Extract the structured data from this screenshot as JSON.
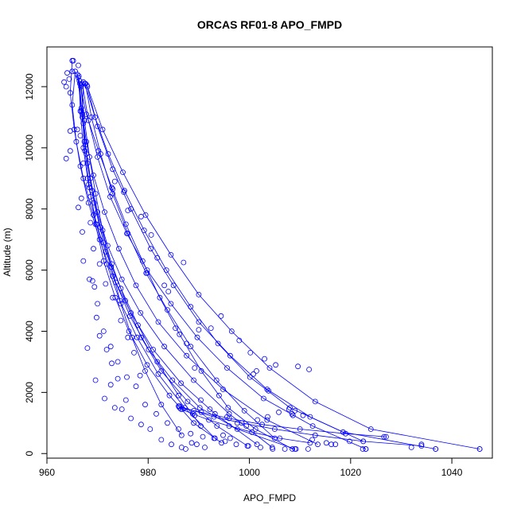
{
  "chart_data": {
    "type": "line",
    "title": "ORCAS RF01-8 APO_FMPD",
    "xlabel": "APO_FMPD",
    "ylabel": "Altitude (m)",
    "xlim": [
      960,
      1048
    ],
    "ylim": [
      -150,
      13300
    ],
    "x_ticks": [
      960,
      980,
      1000,
      1020,
      1040
    ],
    "y_ticks": [
      0,
      2000,
      4000,
      6000,
      8000,
      10000,
      12000
    ],
    "grid": false,
    "legend": "none",
    "line_color": "#0000ff",
    "marker": "open-circle",
    "series": [
      {
        "x": [
          966.5,
          967.8,
          970.2,
          972.8,
          975.6,
          978.9,
          982.3,
          986.2,
          990.5,
          995.8,
          1001.2,
          1008.5
        ],
        "y": [
          12100,
          11100,
          9900,
          8700,
          7500,
          6300,
          5100,
          3900,
          2700,
          1500,
          800,
          150
        ]
      },
      {
        "x": [
          966.8,
          967.2,
          968.0,
          969.3,
          971.2,
          973.6,
          976.4,
          980.1,
          984.8,
          990.2,
          997.6,
          1009.0
        ],
        "y": [
          12050,
          10800,
          9500,
          8200,
          6900,
          5600,
          4500,
          3400,
          2400,
          1500,
          800,
          150
        ]
      },
      {
        "x": [
          967.5,
          969.5,
          972.1,
          975.3,
          979.2,
          983.6,
          988.4,
          993.8,
          1000.1,
          1008.0,
          1018.5,
          1036.8
        ],
        "y": [
          12100,
          11000,
          9800,
          8600,
          7300,
          6000,
          4800,
          3600,
          2500,
          1500,
          700,
          150
        ]
      },
      {
        "x": [
          967.0,
          968.2,
          970.0,
          972.5,
          975.8,
          979.8,
          984.5,
          989.7,
          995.6,
          1002.8,
          1012.5,
          1023.0
        ],
        "y": [
          12100,
          10900,
          9700,
          8400,
          7200,
          6000,
          4900,
          3800,
          2800,
          1800,
          900,
          150
        ]
      },
      {
        "x": [
          966.2,
          966.8,
          967.6,
          968.6,
          970.0,
          972.0,
          974.8,
          978.5,
          983.2,
          989.0,
          996.0,
          1004.5
        ],
        "y": [
          12300,
          11200,
          10100,
          9000,
          7900,
          6800,
          5700,
          4600,
          3500,
          2400,
          1300,
          200
        ]
      },
      {
        "x": [
          965.0,
          964.6,
          965.4,
          966.6,
          968.2,
          970.4,
          973.0,
          976.6,
          981.0,
          986.5,
          993.2,
          1001.5
        ],
        "y": [
          12850,
          11800,
          10600,
          9400,
          8200,
          7000,
          5800,
          4600,
          3400,
          2300,
          1300,
          300
        ]
      },
      {
        "x": [
          967.9,
          970.0,
          973.0,
          976.6,
          980.5,
          985.0,
          990.0,
          996.2,
          1003.5,
          1012.0,
          1022.5
        ],
        "y": [
          12050,
          10700,
          9300,
          8000,
          6700,
          5500,
          4300,
          3200,
          2100,
          1200,
          400
        ]
      },
      {
        "x": [
          966.4,
          967.0,
          967.8,
          968.9,
          970.6,
          972.8,
          975.5,
          978.6,
          982.6,
          987.8,
          993.6,
          999.6
        ],
        "y": [
          12200,
          11000,
          9800,
          8600,
          7400,
          6200,
          5000,
          3800,
          2700,
          1700,
          900,
          250
        ]
      },
      {
        "x": [
          966.0,
          966.8,
          967.8,
          969.2,
          971.4,
          974.2,
          977.6,
          982.0,
          987.6,
          994.8,
          1003.5,
          1013.5
        ],
        "y": [
          12400,
          11300,
          10200,
          9100,
          7900,
          6700,
          5500,
          4300,
          3200,
          2100,
          1100,
          300
        ]
      },
      {
        "x": [
          967.2,
          967.0,
          967.5,
          968.4,
          969.6,
          971.2,
          973.5,
          976.2,
          979.8,
          984.2,
          989.0,
          994.5
        ],
        "y": [
          12150,
          11100,
          9900,
          8700,
          7500,
          6300,
          5100,
          4000,
          2900,
          1900,
          1000,
          350
        ]
      },
      {
        "x": [
          968.0,
          971.0,
          975.0,
          979.5,
          984.5,
          990.0,
          996.5,
          1004.0,
          1013.0,
          1024.0,
          1045.5
        ],
        "y": [
          12000,
          10600,
          9200,
          7800,
          6500,
          5200,
          4000,
          2800,
          1700,
          800,
          150
        ]
      },
      {
        "x": [
          966.3,
          966.6,
          967.2,
          968.2,
          969.8,
          971.8,
          974.4,
          977.8,
          982.0,
          987.2,
          993.2
        ],
        "y": [
          12350,
          11200,
          10000,
          8800,
          7500,
          6200,
          5000,
          3800,
          2600,
          1500,
          500
        ]
      },
      {
        "x": [
          986.0,
          989.0,
          993.0,
          998.5,
          1005.0,
          1013.0,
          1022.5,
          1034.0
        ],
        "y": [
          1550,
          1400,
          1200,
          1000,
          800,
          600,
          400,
          250
        ]
      },
      {
        "x": [
          986.2,
          990.5,
          996.0,
          1002.5,
          1010.0,
          1019.0,
          1027.0
        ],
        "y": [
          1500,
          1350,
          1150,
          950,
          800,
          650,
          550
        ]
      },
      {
        "x": [
          986.5,
          988.8,
          992.0,
          996.0,
          1000.5,
          1006.0,
          1012.0
        ],
        "y": [
          1450,
          1300,
          1100,
          900,
          700,
          500,
          350
        ]
      },
      {
        "x": [
          966.7,
          967.4,
          968.4,
          969.6,
          971.0,
          972.7,
          974.6,
          976.8,
          979.4,
          982.6,
          986.6
        ],
        "y": [
          12000,
          10900,
          9700,
          8500,
          7300,
          6100,
          4900,
          3800,
          2700,
          1600,
          600
        ]
      },
      {
        "x": [
          967.6,
          968.8,
          970.6,
          973.0,
          976.0,
          979.6,
          983.8,
          988.4,
          993.5,
          999.0,
          1005.0
        ],
        "y": [
          12100,
          11000,
          9800,
          8500,
          7200,
          5900,
          4700,
          3500,
          2400,
          1400,
          500
        ]
      },
      {
        "x": [
          965.6,
          965.0,
          965.8,
          967.2,
          969.2,
          971.6,
          974.6,
          978.0,
          981.8,
          986.0,
          990.4
        ],
        "y": [
          12500,
          11400,
          10200,
          9000,
          7800,
          6600,
          5400,
          4200,
          3000,
          1900,
          900
        ]
      }
    ],
    "scatter_points": {
      "x": [
        963.4,
        964.0,
        963.8,
        964.6,
        965.2,
        966.2,
        966.0,
        964.6,
        963.8,
        964.4,
        965.0,
        966.6,
        967.4,
        967.2,
        968.0,
        968.6,
        966.8,
        966.2,
        967.0,
        968.6,
        969.2,
        970.4,
        971.6,
        973.0,
        974.6,
        976.0,
        977.2,
        978.4,
        970.0,
        969.4,
        969.0,
        970.4,
        971.8,
        972.8,
        974.0,
        975.6,
        968.0,
        969.6,
        971.4,
        972.6,
        973.4,
        974.8,
        976.6,
        978.6,
        980.4,
        982.6,
        984.6,
        986.6,
        987.4,
        980.6,
        983.2,
        985.4,
        987.6,
        989.2,
        990.4,
        992.2,
        994.0,
        995.6,
        997.6,
        999.4,
        1001.6,
        1003.6,
        1005.8,
        1008.4,
        1010.6,
        1012.4,
        1015.2,
        1017.0,
        1019.8,
        1023.0,
        1026.6,
        1032.0,
        1034.0,
        1036.8,
        1045.5,
        967.2,
        968.4,
        969.8,
        971.2,
        972.6,
        974.0,
        975.8,
        977.6,
        979.4,
        981.6,
        983.8,
        986.0,
        988.4,
        990.8,
        993.0,
        995.2,
        997.4,
        999.8,
        1002.2,
        1004.6,
        1007.0,
        1009.2,
        1011.6,
        1000.8,
        1001.4,
        1003.8,
        1007.8,
        1008.6,
        1009.0,
        1016.2,
        1022.4,
        986.2,
        986.8,
        989.2,
        989.6,
        991.2,
        988.6,
        994.8,
        996.2,
        973.4,
        973.0,
        975.2,
        976.0,
        978.6,
        979.8,
        981.8,
        984.0,
        987.0,
        990.0,
        992.4,
        994.4,
        998.0,
        1000.2,
        1003.0,
        1005.2,
        1009.6,
        1011.8
      ],
      "y": [
        12150,
        12450,
        9650,
        10550,
        12850,
        12700,
        10600,
        9900,
        12000,
        12250,
        12500,
        10400,
        10200,
        9500,
        9000,
        8400,
        8350,
        8050,
        7250,
        7550,
        6700,
        6200,
        5550,
        5100,
        4350,
        3800,
        3300,
        2550,
        4900,
        5450,
        5650,
        3850,
        3400,
        2950,
        2450,
        1750,
        3450,
        2400,
        1800,
        2250,
        1500,
        1450,
        1150,
        950,
        800,
        450,
        300,
        200,
        150,
        7150,
        5500,
        4100,
        3600,
        2800,
        1750,
        1450,
        1900,
        1200,
        1000,
        900,
        1100,
        1200,
        1350,
        1300,
        1250,
        450,
        350,
        300,
        400,
        150,
        550,
        200,
        300,
        150,
        150,
        6300,
        5700,
        4450,
        4000,
        3500,
        3000,
        2500,
        2200,
        1600,
        1300,
        1000,
        800,
        650,
        550,
        500,
        400,
        300,
        250,
        200,
        150,
        150,
        150,
        150,
        2600,
        2700,
        2050,
        1450,
        1250,
        1400,
        300,
        150,
        1550,
        1450,
        1250,
        300,
        200,
        350,
        600,
        500,
        8900,
        8650,
        8550,
        7950,
        7750,
        5900,
        6400,
        5300,
        6250,
        4050,
        4100,
        4500,
        3700,
        3300,
        3100,
        2900,
        2850,
        2750
      ]
    }
  }
}
